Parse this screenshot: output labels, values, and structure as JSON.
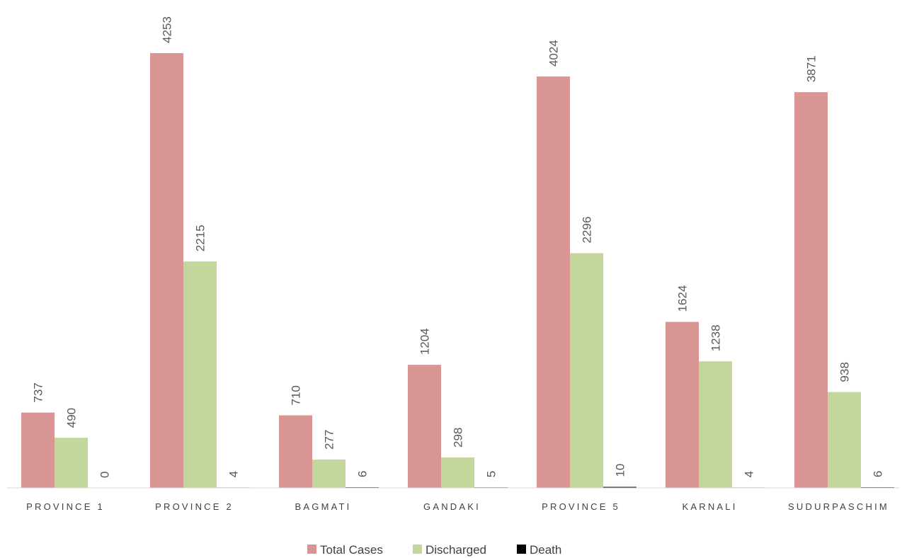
{
  "chart_data": {
    "type": "bar",
    "categories": [
      "PROVINCE 1",
      "PROVINCE 2",
      "BAGMATI",
      "GANDAKI",
      "PROVINCE 5",
      "KARNALI",
      "SUDURPASCHIM"
    ],
    "series": [
      {
        "name": "Total Cases",
        "color": "#d99594",
        "values": [
          737,
          4253,
          710,
          1204,
          4024,
          1624,
          3871
        ]
      },
      {
        "name": "Discharged",
        "color": "#c3d69b",
        "values": [
          490,
          2215,
          277,
          298,
          2296,
          1238,
          938
        ]
      },
      {
        "name": "Death",
        "color": "#000000",
        "values": [
          0,
          4,
          6,
          5,
          10,
          4,
          6
        ]
      }
    ],
    "title": "",
    "xlabel": "",
    "ylabel": "",
    "ylim": [
      0,
      4300
    ],
    "grid": false,
    "legend": "bottom-center",
    "data_labels": "rotated-vertical"
  }
}
